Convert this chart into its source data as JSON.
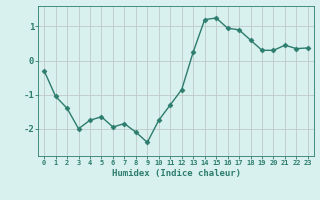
{
  "x": [
    0,
    1,
    2,
    3,
    4,
    5,
    6,
    7,
    8,
    9,
    10,
    11,
    12,
    13,
    14,
    15,
    16,
    17,
    18,
    19,
    20,
    21,
    22,
    23
  ],
  "y": [
    -0.3,
    -1.05,
    -1.4,
    -2.0,
    -1.75,
    -1.65,
    -1.95,
    -1.85,
    -2.1,
    -2.4,
    -1.75,
    -1.3,
    -0.85,
    0.25,
    1.2,
    1.25,
    0.95,
    0.9,
    0.6,
    0.3,
    0.3,
    0.45,
    0.35,
    0.37
  ],
  "xlabel": "Humidex (Indice chaleur)",
  "line_color": "#2d7d6e",
  "marker": "D",
  "marker_size": 2.5,
  "bg_color": "#d8f0ee",
  "grid_color": "#c0c8c8",
  "tick_color": "#2d7d6e",
  "xlim": [
    -0.5,
    23.5
  ],
  "ylim": [
    -2.8,
    1.6
  ],
  "yticks": [
    -2,
    -1,
    0,
    1
  ],
  "xticks": [
    0,
    1,
    2,
    3,
    4,
    5,
    6,
    7,
    8,
    9,
    10,
    11,
    12,
    13,
    14,
    15,
    16,
    17,
    18,
    19,
    20,
    21,
    22,
    23
  ],
  "xtick_labels": [
    "0",
    "1",
    "2",
    "3",
    "4",
    "5",
    "6",
    "7",
    "8",
    "9",
    "10",
    "11",
    "12",
    "13",
    "14",
    "15",
    "16",
    "17",
    "18",
    "19",
    "20",
    "21",
    "22",
    "23"
  ]
}
